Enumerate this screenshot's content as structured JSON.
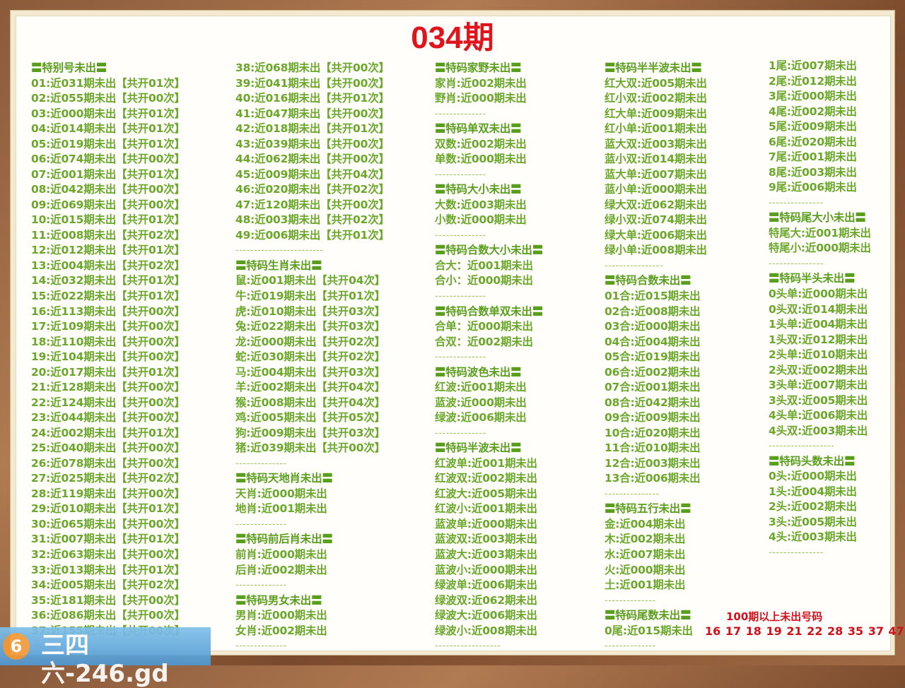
{
  "title": "034期",
  "colors": {
    "title": "#e0141c",
    "text": "#6aa72a",
    "divider": "#9bc46a",
    "frame": "#8a5a3a"
  },
  "columns": [
    [
      {
        "t": "h",
        "text": "〓特别号未出〓"
      },
      {
        "t": "i",
        "text": "01:近031期未出【共开01次】"
      },
      {
        "t": "i",
        "text": "02:近055期未出【共开00次】"
      },
      {
        "t": "i",
        "text": "03:近000期未出【共开01次】"
      },
      {
        "t": "i",
        "text": "04:近014期未出【共开01次】"
      },
      {
        "t": "i",
        "text": "05:近019期未出【共开01次】"
      },
      {
        "t": "i",
        "text": "06:近074期未出【共开00次】"
      },
      {
        "t": "i",
        "text": "07:近001期未出【共开01次】"
      },
      {
        "t": "i",
        "text": "08:近042期未出【共开00次】"
      },
      {
        "t": "i",
        "text": "09:近069期未出【共开00次】"
      },
      {
        "t": "i",
        "text": "10:近015期未出【共开01次】"
      },
      {
        "t": "i",
        "text": "11:近008期未出【共开02次】"
      },
      {
        "t": "i",
        "text": "12:近012期未出【共开01次】"
      },
      {
        "t": "i",
        "text": "13:近004期未出【共开02次】"
      },
      {
        "t": "i",
        "text": "14:近032期未出【共开01次】"
      },
      {
        "t": "i",
        "text": "15:近022期未出【共开01次】"
      },
      {
        "t": "i",
        "text": "16:近113期未出【共开00次】"
      },
      {
        "t": "i",
        "text": "17:近109期未出【共开00次】"
      },
      {
        "t": "i",
        "text": "18:近110期未出【共开00次】"
      },
      {
        "t": "i",
        "text": "19:近104期未出【共开00次】"
      },
      {
        "t": "i",
        "text": "20:近017期未出【共开01次】"
      },
      {
        "t": "i",
        "text": "21:近128期未出【共开00次】"
      },
      {
        "t": "i",
        "text": "22:近124期未出【共开00次】"
      },
      {
        "t": "i",
        "text": "23:近044期未出【共开00次】"
      },
      {
        "t": "i",
        "text": "24:近002期未出【共开01次】"
      },
      {
        "t": "i",
        "text": "25:近040期未出【共开00次】"
      },
      {
        "t": "i",
        "text": "26:近078期未出【共开00次】"
      },
      {
        "t": "i",
        "text": "27:近025期未出【共开02次】"
      },
      {
        "t": "i",
        "text": "28:近119期未出【共开00次】"
      },
      {
        "t": "i",
        "text": "29:近010期未出【共开01次】"
      },
      {
        "t": "i",
        "text": "30:近065期未出【共开00次】"
      },
      {
        "t": "i",
        "text": "31:近007期未出【共开01次】"
      },
      {
        "t": "i",
        "text": "32:近063期未出【共开00次】"
      },
      {
        "t": "i",
        "text": "33:近013期未出【共开01次】"
      },
      {
        "t": "i",
        "text": "34:近005期未出【共开02次】"
      },
      {
        "t": "i",
        "text": "35:近181期未出【共开00次】"
      },
      {
        "t": "i",
        "text": "36:近086期未出【共开00次】"
      },
      {
        "t": "i",
        "text": "37:近155期未出【共开00次】"
      }
    ],
    [
      {
        "t": "i",
        "text": "38:近068期未出【共开00次】"
      },
      {
        "t": "i",
        "text": "39:近041期未出【共开00次】"
      },
      {
        "t": "i",
        "text": "40:近016期未出【共开01次】"
      },
      {
        "t": "i",
        "text": "41:近047期未出【共开00次】"
      },
      {
        "t": "i",
        "text": "42:近018期未出【共开01次】"
      },
      {
        "t": "i",
        "text": "43:近039期未出【共开00次】"
      },
      {
        "t": "i",
        "text": "44:近062期未出【共开00次】"
      },
      {
        "t": "i",
        "text": "45:近009期未出【共开04次】"
      },
      {
        "t": "i",
        "text": "46:近020期未出【共开02次】"
      },
      {
        "t": "i",
        "text": "47:近120期未出【共开00次】"
      },
      {
        "t": "i",
        "text": "48:近003期未出【共开02次】"
      },
      {
        "t": "i",
        "text": "49:近006期未出【共开01次】"
      },
      {
        "t": "d",
        "text": "------------------------"
      },
      {
        "t": "h",
        "text": "〓特码生肖未出〓"
      },
      {
        "t": "i",
        "text": "鼠:近001期未出【共开04次】"
      },
      {
        "t": "i",
        "text": "牛:近019期未出【共开01次】"
      },
      {
        "t": "i",
        "text": "虎:近010期未出【共开03次】"
      },
      {
        "t": "i",
        "text": "兔:近022期未出【共开03次】"
      },
      {
        "t": "i",
        "text": "龙:近000期未出【共开02次】"
      },
      {
        "t": "i",
        "text": "蛇:近030期未出【共开02次】"
      },
      {
        "t": "i",
        "text": "马:近004期未出【共开03次】"
      },
      {
        "t": "i",
        "text": "羊:近002期未出【共开04次】"
      },
      {
        "t": "i",
        "text": "猴:近008期未出【共开04次】"
      },
      {
        "t": "i",
        "text": "鸡:近005期未出【共开05次】"
      },
      {
        "t": "i",
        "text": "狗:近009期未出【共开03次】"
      },
      {
        "t": "i",
        "text": "猪:近039期未出【共开00次】"
      },
      {
        "t": "d",
        "text": "--------------"
      },
      {
        "t": "h",
        "text": "〓特码天地肖未出〓"
      },
      {
        "t": "i",
        "text": "天肖:近000期未出"
      },
      {
        "t": "i",
        "text": "地肖:近001期未出"
      },
      {
        "t": "d",
        "text": "--------------"
      },
      {
        "t": "h",
        "text": "〓特码前后肖未出〓"
      },
      {
        "t": "i",
        "text": "前肖:近000期未出"
      },
      {
        "t": "i",
        "text": "后肖:近002期未出"
      },
      {
        "t": "d",
        "text": "--------------"
      },
      {
        "t": "h",
        "text": "〓特码男女未出〓"
      },
      {
        "t": "i",
        "text": "男肖:近000期未出"
      },
      {
        "t": "i",
        "text": "女肖:近002期未出"
      },
      {
        "t": "d",
        "text": "--------------"
      }
    ],
    [
      {
        "t": "h",
        "text": "〓特码家野未出〓"
      },
      {
        "t": "i",
        "text": "家肖:近002期未出"
      },
      {
        "t": "i",
        "text": "野肖:近000期未出"
      },
      {
        "t": "d",
        "text": "--------------"
      },
      {
        "t": "h",
        "text": "〓特码单双未出〓"
      },
      {
        "t": "i",
        "text": "双数:近002期未出"
      },
      {
        "t": "i",
        "text": "单数:近000期未出"
      },
      {
        "t": "d",
        "text": "--------------"
      },
      {
        "t": "h",
        "text": "〓特码大小未出〓"
      },
      {
        "t": "i",
        "text": "大数:近003期未出"
      },
      {
        "t": "i",
        "text": "小数:近000期未出"
      },
      {
        "t": "d",
        "text": "--------------"
      },
      {
        "t": "h",
        "text": "〓特码合数大小未出〓"
      },
      {
        "t": "i",
        "text": "合大：近001期未出"
      },
      {
        "t": "i",
        "text": "合小：近000期未出"
      },
      {
        "t": "d",
        "text": "--------------"
      },
      {
        "t": "h",
        "text": "〓特码合数单双未出〓"
      },
      {
        "t": "i",
        "text": "合单：近000期未出"
      },
      {
        "t": "i",
        "text": "合双：近002期未出"
      },
      {
        "t": "d",
        "text": "--------------"
      },
      {
        "t": "h",
        "text": "〓特码波色未出〓"
      },
      {
        "t": "i",
        "text": "红波:近001期未出"
      },
      {
        "t": "i",
        "text": "蓝波:近000期未出"
      },
      {
        "t": "i",
        "text": "绿波:近006期未出"
      },
      {
        "t": "d",
        "text": "--------------"
      },
      {
        "t": "h",
        "text": "〓特码半波未出〓"
      },
      {
        "t": "i",
        "text": "红波单:近001期未出"
      },
      {
        "t": "i",
        "text": "红波双:近002期未出"
      },
      {
        "t": "i",
        "text": "红波大:近005期未出"
      },
      {
        "t": "i",
        "text": "红波小:近001期未出"
      },
      {
        "t": "i",
        "text": "蓝波单:近000期未出"
      },
      {
        "t": "i",
        "text": "蓝波双:近003期未出"
      },
      {
        "t": "i",
        "text": "蓝波大:近003期未出"
      },
      {
        "t": "i",
        "text": "蓝波小:近000期未出"
      },
      {
        "t": "i",
        "text": "绿波单:近006期未出"
      },
      {
        "t": "i",
        "text": "绿波双:近062期未出"
      },
      {
        "t": "i",
        "text": "绿波大:近006期未出"
      },
      {
        "t": "i",
        "text": "绿波小:近008期未出"
      },
      {
        "t": "d",
        "text": "------------------"
      }
    ],
    [
      {
        "t": "h",
        "text": "〓特码半半波未出〓"
      },
      {
        "t": "i",
        "text": "红大双:近005期未出"
      },
      {
        "t": "i",
        "text": "红小双:近002期未出"
      },
      {
        "t": "i",
        "text": "红大单:近009期未出"
      },
      {
        "t": "i",
        "text": "红小单:近001期未出"
      },
      {
        "t": "i",
        "text": "蓝大双:近003期未出"
      },
      {
        "t": "i",
        "text": "蓝小双:近014期未出"
      },
      {
        "t": "i",
        "text": "蓝大单:近007期未出"
      },
      {
        "t": "i",
        "text": "蓝小单:近000期未出"
      },
      {
        "t": "i",
        "text": "绿大双:近062期未出"
      },
      {
        "t": "i",
        "text": "绿小双:近074期未出"
      },
      {
        "t": "i",
        "text": "绿大单:近006期未出"
      },
      {
        "t": "i",
        "text": "绿小单:近008期未出"
      },
      {
        "t": "d",
        "text": "----------------"
      },
      {
        "t": "h",
        "text": "〓特码合数未出〓"
      },
      {
        "t": "i",
        "text": "01合:近015期未出"
      },
      {
        "t": "i",
        "text": "02合:近008期未出"
      },
      {
        "t": "i",
        "text": "03合:近000期未出"
      },
      {
        "t": "i",
        "text": "04合:近004期未出"
      },
      {
        "t": "i",
        "text": "05合:近019期未出"
      },
      {
        "t": "i",
        "text": "06合:近002期未出"
      },
      {
        "t": "i",
        "text": "07合:近001期未出"
      },
      {
        "t": "i",
        "text": "08合:近042期未出"
      },
      {
        "t": "i",
        "text": "09合:近009期未出"
      },
      {
        "t": "i",
        "text": "10合:近020期未出"
      },
      {
        "t": "i",
        "text": "11合:近010期未出"
      },
      {
        "t": "i",
        "text": "12合:近003期未出"
      },
      {
        "t": "i",
        "text": "13合:近006期未出"
      },
      {
        "t": "d",
        "text": "---------------"
      },
      {
        "t": "h",
        "text": "〓特码五行未出〓"
      },
      {
        "t": "i",
        "text": "金:近004期未出"
      },
      {
        "t": "i",
        "text": "木:近002期未出"
      },
      {
        "t": "i",
        "text": "水:近007期未出"
      },
      {
        "t": "i",
        "text": "火:近000期未出"
      },
      {
        "t": "i",
        "text": "土:近001期未出"
      },
      {
        "t": "d",
        "text": "--------------"
      },
      {
        "t": "h",
        "text": "〓特码尾数未出〓"
      },
      {
        "t": "i",
        "text": "0尾:近015期未出"
      },
      {
        "t": "d",
        "text": "--------------"
      }
    ],
    [
      {
        "t": "i",
        "text": "1尾:近007期未出"
      },
      {
        "t": "i",
        "text": "2尾:近012期未出"
      },
      {
        "t": "i",
        "text": "3尾:近000期未出"
      },
      {
        "t": "i",
        "text": "4尾:近002期未出"
      },
      {
        "t": "i",
        "text": "5尾:近009期未出"
      },
      {
        "t": "i",
        "text": "6尾:近020期未出"
      },
      {
        "t": "i",
        "text": "7尾:近001期未出"
      },
      {
        "t": "i",
        "text": "8尾:近003期未出"
      },
      {
        "t": "i",
        "text": "9尾:近006期未出"
      },
      {
        "t": "d",
        "text": "---------------"
      },
      {
        "t": "h",
        "text": "〓特码尾大小未出〓"
      },
      {
        "t": "i",
        "text": "特尾大:近001期未出"
      },
      {
        "t": "i",
        "text": "特尾小:近000期未出"
      },
      {
        "t": "d",
        "text": "---------------"
      },
      {
        "t": "h",
        "text": "〓特码半头未出〓"
      },
      {
        "t": "i",
        "text": "0头单:近000期未出"
      },
      {
        "t": "i",
        "text": "0头双:近014期未出"
      },
      {
        "t": "i",
        "text": "1头单:近004期未出"
      },
      {
        "t": "i",
        "text": "1头双:近012期未出"
      },
      {
        "t": "i",
        "text": "2头单:近010期未出"
      },
      {
        "t": "i",
        "text": "2头双:近002期未出"
      },
      {
        "t": "i",
        "text": "3头单:近007期未出"
      },
      {
        "t": "i",
        "text": "3头双:近005期未出"
      },
      {
        "t": "i",
        "text": "4头单:近006期未出"
      },
      {
        "t": "i",
        "text": "4头双:近003期未出"
      },
      {
        "t": "d",
        "text": "------------------"
      },
      {
        "t": "h",
        "text": "〓特码头数未出〓"
      },
      {
        "t": "i",
        "text": "0头:近000期未出"
      },
      {
        "t": "i",
        "text": "1头:近004期未出"
      },
      {
        "t": "i",
        "text": "2头:近002期未出"
      },
      {
        "t": "i",
        "text": "3头:近005期未出"
      },
      {
        "t": "i",
        "text": "4头:近003期未出"
      },
      {
        "t": "d",
        "text": "---------------"
      }
    ]
  ],
  "over100": {
    "title": "100期以上未出号码",
    "numbers": "16 17 18 19 21 22 28 35 37 47"
  },
  "watermark": {
    "logo": "6",
    "text": "三四六-246.gd"
  }
}
